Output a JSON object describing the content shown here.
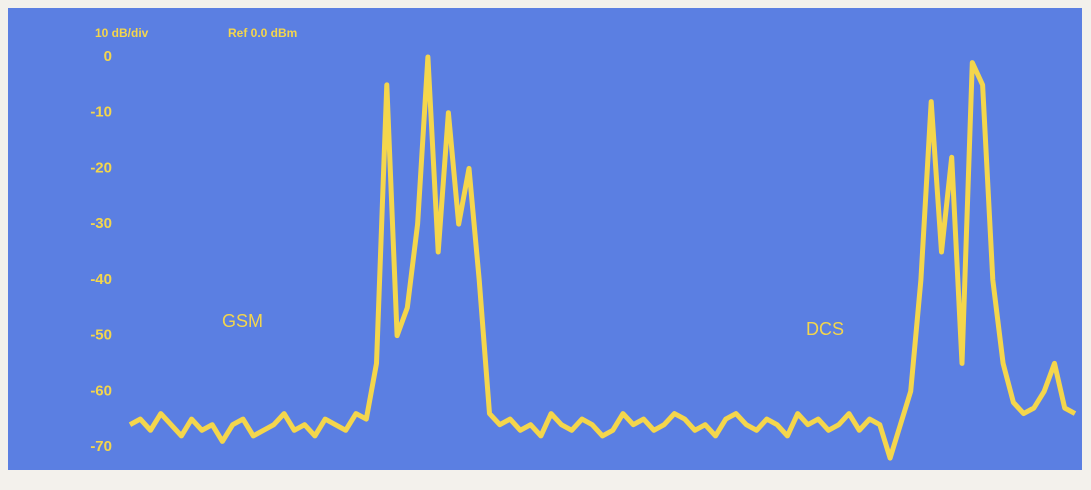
{
  "chart_data": {
    "type": "line",
    "header_left": "10 dB/div",
    "header_ref": "Ref 0.0 dBm",
    "annotations": [
      "GSM",
      "DCS"
    ],
    "ylim": [
      -70,
      0
    ],
    "yticks": [
      0,
      -10,
      -20,
      -30,
      -40,
      -50,
      -60,
      -70
    ],
    "color": "#f4d64c",
    "values": [
      -66,
      -65,
      -67,
      -64,
      -66,
      -68,
      -65,
      -67,
      -66,
      -69,
      -66,
      -65,
      -68,
      -67,
      -66,
      -64,
      -67,
      -66,
      -68,
      -65,
      -66,
      -67,
      -64,
      -65,
      -55,
      -5,
      -50,
      -45,
      -30,
      0,
      -35,
      -10,
      -30,
      -20,
      -40,
      -64,
      -66,
      -65,
      -67,
      -66,
      -68,
      -64,
      -66,
      -67,
      -65,
      -66,
      -68,
      -67,
      -64,
      -66,
      -65,
      -67,
      -66,
      -64,
      -65,
      -67,
      -66,
      -68,
      -65,
      -64,
      -66,
      -67,
      -65,
      -66,
      -68,
      -64,
      -66,
      -65,
      -67,
      -66,
      -64,
      -67,
      -65,
      -66,
      -72,
      -66,
      -60,
      -40,
      -8,
      -35,
      -18,
      -55,
      -1,
      -5,
      -40,
      -55,
      -62,
      -64,
      -63,
      -60,
      -55,
      -63,
      -64
    ]
  }
}
